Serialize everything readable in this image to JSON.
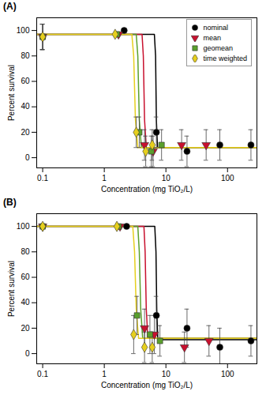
{
  "chart_data": [
    {
      "type": "scatter",
      "title": "(A)",
      "x_label": "Concentration (mg TiO₂/L)",
      "y_label": "Percent survival",
      "log": "x",
      "legend": "top-right",
      "xlim": [
        0.08,
        300
      ],
      "xticks": [
        0.1,
        1,
        10,
        100
      ],
      "ylim": [
        -8,
        110
      ],
      "yticks": [
        0,
        20,
        40,
        60,
        80,
        100
      ],
      "series": [
        {
          "name": "nominal",
          "color": "#000000",
          "marker": "circle",
          "x": [
            0.1,
            2.1,
            7,
            22,
            75,
            240
          ],
          "values": [
            95,
            100,
            20,
            5,
            10,
            10
          ],
          "errors": [
            10,
            null,
            12,
            12,
            12,
            12
          ],
          "fit": {
            "x": [
              0.08,
              6.5,
              6.8,
              7.0,
              7.3,
              300
            ],
            "values": [
              97,
              97,
              80,
              30,
              8,
              8
            ]
          }
        },
        {
          "name": "mean",
          "color": "#c8102e",
          "marker": "triangle-down",
          "x": [
            0.1,
            1.7,
            4.5,
            6.2,
            18,
            45
          ],
          "values": [
            95,
            97,
            10,
            5,
            10,
            10
          ],
          "errors": [
            10,
            null,
            12,
            12,
            12,
            12
          ],
          "fit": {
            "x": [
              0.08,
              4.1,
              4.3,
              4.5,
              4.8,
              300
            ],
            "values": [
              97,
              97,
              80,
              30,
              8,
              8
            ]
          }
        },
        {
          "name": "geomean",
          "color": "#5aa02c",
          "marker": "square",
          "x": [
            0.1,
            1.6,
            3.7,
            5.8,
            8.5
          ],
          "values": [
            95,
            97,
            20,
            5,
            10
          ],
          "errors": [
            10,
            null,
            12,
            12,
            12
          ],
          "fit": {
            "x": [
              0.08,
              3.3,
              3.5,
              3.7,
              4.0,
              300
            ],
            "values": [
              97,
              97,
              80,
              30,
              8,
              8
            ]
          }
        },
        {
          "name": "time weighted",
          "color": "#e6cf1e",
          "marker": "diamond",
          "x": [
            0.1,
            1.5,
            3.3,
            4.7,
            6
          ],
          "values": [
            95,
            97,
            20,
            5,
            10
          ],
          "errors": [
            10,
            null,
            12,
            12,
            12
          ],
          "fit": {
            "x": [
              0.08,
              2.8,
              3.0,
              3.2,
              3.5,
              300
            ],
            "values": [
              97,
              97,
              80,
              30,
              8,
              8
            ]
          }
        }
      ]
    },
    {
      "type": "scatter",
      "title": "(B)",
      "x_label": "Concentration (mg TiO₂/L)",
      "y_label": "Percent survival",
      "log": "x",
      "xlim": [
        0.08,
        300
      ],
      "xticks": [
        0.1,
        1,
        10,
        100
      ],
      "ylim": [
        -8,
        110
      ],
      "yticks": [
        0,
        20,
        40,
        60,
        80,
        100
      ],
      "series": [
        {
          "name": "nominal",
          "color": "#000000",
          "marker": "circle",
          "x": [
            0.1,
            2.3,
            7,
            22,
            75,
            240
          ],
          "values": [
            100,
            100,
            30,
            20,
            5,
            10
          ],
          "errors": [
            null,
            null,
            15,
            15,
            15,
            12
          ],
          "fit": {
            "x": [
              0.08,
              6.6,
              6.9,
              7.1,
              7.4,
              300
            ],
            "values": [
              100,
              100,
              80,
              35,
              11,
              11
            ]
          }
        },
        {
          "name": "mean",
          "color": "#c8102e",
          "marker": "triangle-down",
          "x": [
            0.1,
            1.8,
            4.5,
            6.5,
            20,
            50
          ],
          "values": [
            100,
            100,
            20,
            15,
            5,
            10
          ],
          "errors": [
            null,
            null,
            15,
            15,
            12,
            12
          ],
          "fit": {
            "x": [
              0.08,
              4.4,
              4.6,
              4.8,
              5.1,
              300
            ],
            "values": [
              100,
              100,
              80,
              35,
              12,
              12
            ]
          }
        },
        {
          "name": "geomean",
          "color": "#5aa02c",
          "marker": "square",
          "x": [
            0.1,
            1.7,
            3.4,
            5.5,
            8
          ],
          "values": [
            100,
            100,
            30,
            15,
            10
          ],
          "errors": [
            null,
            null,
            15,
            15,
            12
          ],
          "fit": {
            "x": [
              0.08,
              3.5,
              3.7,
              3.9,
              4.2,
              300
            ],
            "values": [
              100,
              100,
              80,
              35,
              12,
              12
            ]
          }
        },
        {
          "name": "time weighted",
          "color": "#e6cf1e",
          "marker": "diamond",
          "x": [
            0.1,
            1.6,
            3.0,
            4.5,
            6
          ],
          "values": [
            100,
            100,
            15,
            5,
            5
          ],
          "errors": [
            null,
            null,
            15,
            12,
            12
          ],
          "fit": {
            "x": [
              0.08,
              2.9,
              3.1,
              3.3,
              3.6,
              300
            ],
            "values": [
              100,
              100,
              80,
              35,
              12,
              12
            ]
          }
        }
      ]
    }
  ]
}
